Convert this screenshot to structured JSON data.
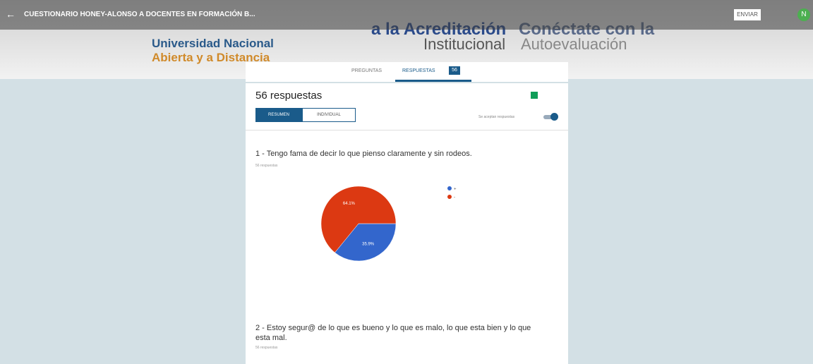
{
  "top_bar": {
    "title": "CUESTIONARIO HONEY-ALONSO A DOCENTES EN FORMACIÓN B...",
    "send": "ENVIAR",
    "avatar": "N"
  },
  "banner": {
    "uni_1": "Universidad Nacional",
    "uni_2": "Abierta y a Distancia",
    "acc_1": "a la Acreditación",
    "acc_2": "Institucional",
    "con_1": "Conéctate con la",
    "con_2": "Autoevaluación"
  },
  "tabs": {
    "questions": "PREGUNTAS",
    "responses": "RESPUESTAS",
    "count": "56"
  },
  "summary": {
    "title": "56 respuestas",
    "summary_btn": "RESUMEN",
    "individual_btn": "INDIVIDUAL",
    "accepting": "Se aceptan respuestas"
  },
  "questions": [
    {
      "text": "1 - Tengo fama de decir lo que pienso claramente y sin rodeos.",
      "count": "56 respuestas"
    },
    {
      "text": "2 - Estoy segur@ de lo que es bueno y lo que es malo, lo que esta bien y lo que esta mal.",
      "count": "56 respuestas"
    }
  ],
  "chart_data": {
    "type": "pie",
    "categories": [
      "+",
      "-"
    ],
    "values": [
      35.9,
      64.1
    ],
    "value_labels": [
      "35.9%",
      "64.1%"
    ],
    "colors": [
      "#3366cc",
      "#dc3912"
    ]
  }
}
